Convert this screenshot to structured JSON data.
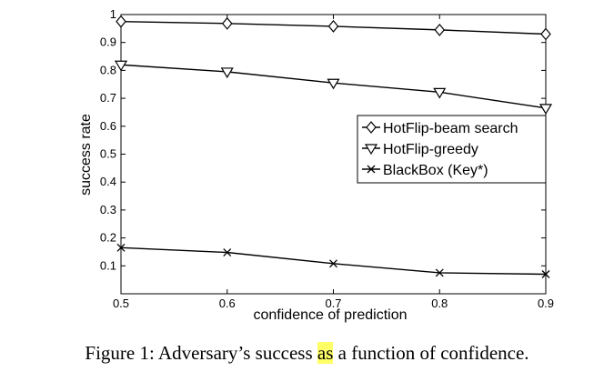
{
  "chart_data": {
    "type": "line",
    "xlabel": "confidence of prediction",
    "ylabel": "success rate",
    "xlim": [
      0.5,
      0.9
    ],
    "ylim": [
      0,
      1
    ],
    "x": [
      0.5,
      0.6,
      0.7,
      0.8,
      0.9
    ],
    "x_ticks": [
      "0.5",
      "0.6",
      "0.7",
      "0.8",
      "0.9"
    ],
    "y_ticks": [
      "0.1",
      "0.2",
      "0.3",
      "0.4",
      "0.5",
      "0.6",
      "0.7",
      "0.8",
      "0.9",
      "1"
    ],
    "legend_position": "middle-right",
    "grid": false,
    "series": [
      {
        "name": "HotFlip-beam search",
        "marker": "diamond",
        "values": [
          0.975,
          0.968,
          0.958,
          0.945,
          0.93
        ]
      },
      {
        "name": "HotFlip-greedy",
        "marker": "triangle-down",
        "values": [
          0.82,
          0.795,
          0.755,
          0.722,
          0.665
        ]
      },
      {
        "name": "BlackBox (Key*)",
        "marker": "x",
        "values": [
          0.165,
          0.148,
          0.108,
          0.075,
          0.07
        ]
      }
    ]
  },
  "caption": {
    "before": "Figure 1: Adversary’s success ",
    "highlight": "as",
    "after": " a function of confidence."
  }
}
